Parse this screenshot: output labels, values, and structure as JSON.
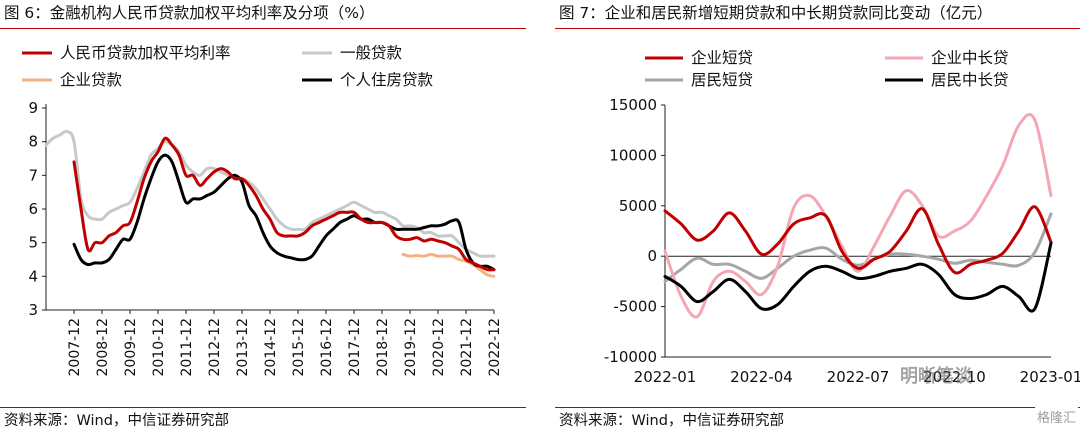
{
  "left": {
    "title": "图 6：金融机构人民币贷款加权平均利率及分项（%）",
    "source": "资料来源：Wind，中信证券研究部"
  },
  "right": {
    "title": "图 7：企业和居民新增短期贷款和中长期贷款同比变动（亿元）",
    "source": "资料来源：Wind，中信证券研究部",
    "watermark": "明晰笔谈",
    "watermark2": "格隆汇"
  },
  "colors": {
    "accent": "#c00000",
    "left_weighted": "#c00000",
    "left_general": "#c8c8c8",
    "left_enterprise": "#f4b183",
    "left_housing": "#000000",
    "right_ent_short": "#c00000",
    "right_ent_long": "#f4a6b4",
    "right_res_short": "#a6a6a6",
    "right_res_long": "#000000"
  },
  "chart_data": [
    {
      "type": "line",
      "categories": [
        "2007-12",
        "2008-12",
        "2009-12",
        "2010-12",
        "2011-12",
        "2012-12",
        "2013-12",
        "2014-12",
        "2015-12",
        "2016-12",
        "2017-12",
        "2018-12",
        "2019-12",
        "2020-12",
        "2021-12",
        "2022-12"
      ],
      "ylim": [
        3,
        9
      ],
      "yticks": [
        3,
        4,
        5,
        6,
        7,
        8,
        9
      ],
      "legend": "top-left",
      "series": [
        {
          "name": "人民币贷款加权平均利率",
          "color": "#c00000",
          "x": [
            2008.0,
            2008.25,
            2008.5,
            2008.75,
            2009.0,
            2009.25,
            2009.5,
            2009.75,
            2010.0,
            2010.25,
            2010.5,
            2010.75,
            2011.0,
            2011.25,
            2011.5,
            2011.75,
            2012.0,
            2012.25,
            2012.5,
            2012.75,
            2013.0,
            2013.25,
            2013.5,
            2013.75,
            2014.0,
            2014.25,
            2014.5,
            2014.75,
            2015.0,
            2015.25,
            2015.5,
            2015.75,
            2016.0,
            2016.25,
            2016.5,
            2016.75,
            2017.0,
            2017.25,
            2017.5,
            2017.75,
            2018.0,
            2018.25,
            2018.5,
            2018.75,
            2019.0,
            2019.25,
            2019.5,
            2019.75,
            2020.0,
            2020.25,
            2020.5,
            2020.75,
            2021.0,
            2021.25,
            2021.5,
            2021.75,
            2022.0,
            2022.25,
            2022.5,
            2022.75,
            2023.0
          ],
          "y": [
            7.4,
            6.0,
            4.8,
            5.0,
            5.0,
            5.2,
            5.3,
            5.5,
            5.6,
            6.2,
            6.9,
            7.4,
            7.7,
            8.1,
            7.9,
            7.6,
            7.0,
            7.0,
            6.7,
            6.9,
            7.1,
            7.2,
            7.1,
            6.9,
            6.9,
            6.7,
            6.4,
            6.0,
            5.7,
            5.3,
            5.2,
            5.2,
            5.2,
            5.3,
            5.5,
            5.6,
            5.7,
            5.8,
            5.9,
            5.9,
            5.9,
            5.7,
            5.6,
            5.6,
            5.6,
            5.5,
            5.2,
            5.1,
            5.1,
            5.15,
            5.05,
            5.1,
            5.05,
            5.0,
            4.9,
            4.8,
            4.5,
            4.4,
            4.3,
            4.2,
            4.2
          ]
        },
        {
          "name": "一般贷款",
          "color": "#c8c8c8",
          "x": [
            2007.0,
            2007.25,
            2007.5,
            2007.75,
            2008.0,
            2008.25,
            2008.5,
            2008.75,
            2009.0,
            2009.25,
            2009.5,
            2009.75,
            2010.0,
            2010.25,
            2010.5,
            2010.75,
            2011.0,
            2011.25,
            2011.5,
            2011.75,
            2012.0,
            2012.25,
            2012.5,
            2012.75,
            2013.0,
            2013.25,
            2013.5,
            2013.75,
            2014.0,
            2014.25,
            2014.5,
            2014.75,
            2015.0,
            2015.25,
            2015.5,
            2015.75,
            2016.0,
            2016.25,
            2016.5,
            2016.75,
            2017.0,
            2017.25,
            2017.5,
            2017.75,
            2018.0,
            2018.25,
            2018.5,
            2018.75,
            2019.0,
            2019.25,
            2019.5,
            2019.75,
            2020.0,
            2020.25,
            2020.5,
            2020.75,
            2021.0,
            2021.25,
            2021.5,
            2021.75,
            2022.0,
            2022.25,
            2022.5,
            2022.75,
            2023.0
          ],
          "y": [
            7.9,
            8.1,
            8.2,
            8.3,
            8.0,
            6.3,
            5.8,
            5.7,
            5.7,
            5.9,
            6.0,
            6.1,
            6.2,
            6.6,
            7.1,
            7.6,
            7.8,
            8.0,
            7.9,
            7.7,
            7.3,
            7.1,
            7.0,
            7.2,
            7.2,
            7.1,
            7.0,
            6.9,
            6.9,
            6.8,
            6.6,
            6.3,
            6.0,
            5.7,
            5.5,
            5.4,
            5.4,
            5.4,
            5.6,
            5.7,
            5.8,
            5.9,
            6.0,
            6.1,
            6.2,
            6.1,
            6.0,
            5.9,
            5.9,
            5.8,
            5.7,
            5.5,
            5.5,
            5.45,
            5.3,
            5.3,
            5.2,
            5.2,
            5.2,
            5.0,
            4.8,
            4.7,
            4.6,
            4.6,
            4.6
          ]
        },
        {
          "name": "企业贷款",
          "color": "#f4b183",
          "x": [
            2019.75,
            2020.0,
            2020.25,
            2020.5,
            2020.75,
            2021.0,
            2021.25,
            2021.5,
            2021.75,
            2022.0,
            2022.25,
            2022.5,
            2022.75,
            2023.0
          ],
          "y": [
            4.65,
            4.6,
            4.62,
            4.6,
            4.65,
            4.6,
            4.6,
            4.6,
            4.5,
            4.45,
            4.35,
            4.2,
            4.05,
            4.0
          ]
        },
        {
          "name": "个人住房贷款",
          "color": "#000000",
          "x": [
            2008.0,
            2008.25,
            2008.5,
            2008.75,
            2009.0,
            2009.25,
            2009.5,
            2009.75,
            2010.0,
            2010.25,
            2010.5,
            2010.75,
            2011.0,
            2011.25,
            2011.5,
            2011.75,
            2012.0,
            2012.25,
            2012.5,
            2012.75,
            2013.0,
            2013.25,
            2013.5,
            2013.75,
            2014.0,
            2014.25,
            2014.5,
            2014.75,
            2015.0,
            2015.25,
            2015.5,
            2015.75,
            2016.0,
            2016.25,
            2016.5,
            2016.75,
            2017.0,
            2017.25,
            2017.5,
            2017.75,
            2018.0,
            2018.25,
            2018.5,
            2018.75,
            2019.0,
            2019.25,
            2019.5,
            2019.75,
            2020.0,
            2020.25,
            2020.5,
            2020.75,
            2021.0,
            2021.25,
            2021.5,
            2021.75,
            2022.0,
            2022.25,
            2022.5,
            2022.75,
            2023.0
          ],
          "y": [
            4.95,
            4.5,
            4.35,
            4.4,
            4.4,
            4.5,
            4.8,
            5.1,
            5.1,
            5.6,
            6.3,
            6.9,
            7.4,
            7.6,
            7.4,
            6.8,
            6.2,
            6.3,
            6.3,
            6.4,
            6.5,
            6.7,
            6.9,
            7.0,
            6.8,
            6.1,
            5.8,
            5.3,
            4.9,
            4.7,
            4.6,
            4.55,
            4.5,
            4.5,
            4.6,
            4.9,
            5.2,
            5.4,
            5.6,
            5.7,
            5.8,
            5.7,
            5.7,
            5.6,
            5.6,
            5.5,
            5.4,
            5.4,
            5.4,
            5.4,
            5.45,
            5.5,
            5.5,
            5.55,
            5.65,
            5.6,
            4.8,
            4.4,
            4.3,
            4.3,
            4.2
          ]
        }
      ]
    },
    {
      "type": "line",
      "categories": [
        "2022-01",
        "2022-04",
        "2022-07",
        "2022-10",
        "2023-01"
      ],
      "ylim": [
        -10000,
        15000
      ],
      "yticks": [
        -10000,
        -5000,
        0,
        5000,
        10000,
        15000
      ],
      "legend": "top",
      "series": [
        {
          "name": "企业短贷",
          "color": "#c00000",
          "x": [
            0,
            0.5,
            1,
            1.5,
            2,
            2.5,
            3,
            3.5,
            4,
            4.5,
            5,
            5.5,
            6,
            6.5,
            7,
            7.5,
            8,
            8.5,
            9,
            9.5,
            10,
            10.5,
            11,
            11.5,
            12
          ],
          "y": [
            4500,
            3200,
            1600,
            2500,
            4300,
            2500,
            200,
            1200,
            3200,
            3800,
            4000,
            500,
            -1200,
            -300,
            500,
            2500,
            4700,
            1200,
            -1600,
            -800,
            -400,
            300,
            2500,
            4900,
            1400
          ]
        },
        {
          "name": "企业中长贷",
          "color": "#f4a6b4",
          "x": [
            0,
            0.5,
            1,
            1.5,
            2,
            2.5,
            3,
            3.5,
            4,
            4.5,
            5,
            5.5,
            6,
            6.5,
            7,
            7.5,
            8,
            8.5,
            9,
            9.5,
            10,
            10.5,
            11,
            11.5,
            12
          ],
          "y": [
            500,
            -4000,
            -6000,
            -2500,
            -1500,
            -2500,
            -3800,
            -1000,
            4800,
            6000,
            4000,
            1000,
            -1500,
            1000,
            4000,
            6500,
            5000,
            2000,
            2500,
            3500,
            6000,
            9000,
            13000,
            13500,
            6000
          ]
        },
        {
          "name": "居民短贷",
          "color": "#a6a6a6",
          "x": [
            0,
            0.5,
            1,
            1.5,
            2,
            2.5,
            3,
            3.5,
            4,
            4.5,
            5,
            5.5,
            6,
            6.5,
            7,
            7.5,
            8,
            8.5,
            9,
            9.5,
            10,
            10.5,
            11,
            11.5,
            12
          ],
          "y": [
            -2500,
            -1300,
            -200,
            -800,
            -800,
            -1500,
            -2200,
            -1200,
            0,
            600,
            800,
            -300,
            -900,
            -300,
            200,
            200,
            0,
            -300,
            -700,
            -400,
            -600,
            -800,
            -900,
            400,
            4200
          ]
        },
        {
          "name": "居民中长贷",
          "color": "#000000",
          "x": [
            0,
            0.5,
            1,
            1.5,
            2,
            2.5,
            3,
            3.5,
            4,
            4.5,
            5,
            5.5,
            6,
            6.5,
            7,
            7.5,
            8,
            8.5,
            9,
            9.5,
            10,
            10.5,
            11,
            11.5,
            12
          ],
          "y": [
            -2000,
            -3000,
            -4500,
            -3500,
            -2300,
            -3500,
            -5200,
            -4800,
            -3000,
            -1500,
            -1000,
            -1500,
            -2200,
            -2000,
            -1500,
            -1200,
            -800,
            -1800,
            -3800,
            -4200,
            -3800,
            -3000,
            -4000,
            -5200,
            1300
          ]
        }
      ]
    }
  ]
}
